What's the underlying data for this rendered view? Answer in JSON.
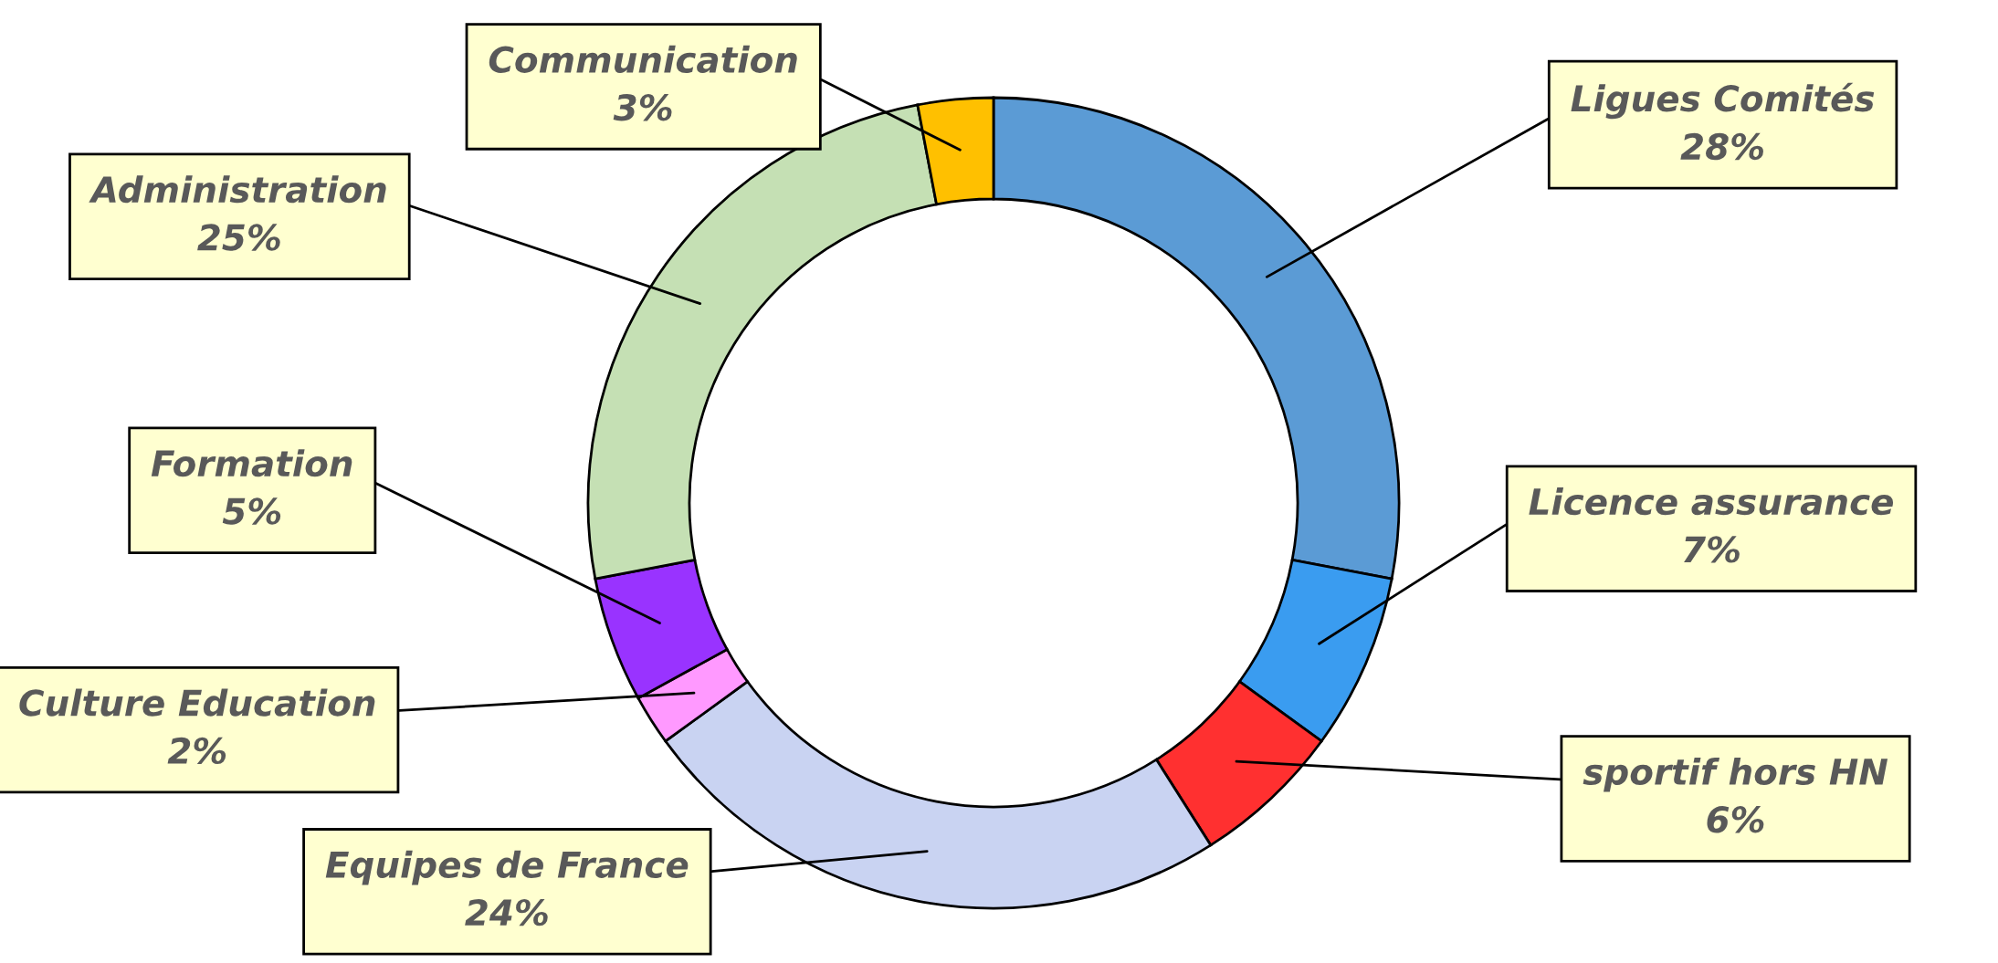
{
  "chart_data": {
    "type": "donut",
    "categories": [
      "Ligues Comités",
      "Licence assurance",
      "sportif hors HN",
      "Equipes de France",
      "Culture Education",
      "Formation",
      "Administration",
      "Communication"
    ],
    "values": [
      28,
      7,
      6,
      24,
      2,
      5,
      25,
      3
    ],
    "value_labels": [
      "28%",
      "7%",
      "6%",
      "24%",
      "2%",
      "5%",
      "25%",
      "3%"
    ],
    "colors": [
      "#5b9bd5",
      "#3a9cf0",
      "#ff3030",
      "#c9d3f2",
      "#ff99ff",
      "#9933ff",
      "#c5e0b4",
      "#ffc000"
    ]
  }
}
